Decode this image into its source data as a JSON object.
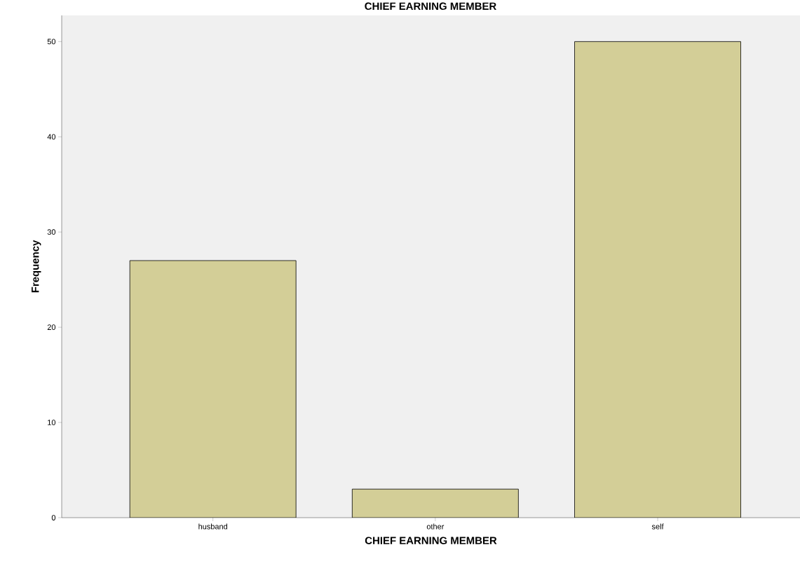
{
  "chart_data": {
    "type": "bar",
    "title": "CHIEF EARNING MEMBER",
    "xlabel": "CHIEF EARNING MEMBER",
    "ylabel": "Frequency",
    "categories": [
      "husband",
      "other",
      "self"
    ],
    "values": [
      27,
      3,
      50
    ],
    "color": "#d3ce97",
    "ylim": [
      0,
      52.75
    ],
    "yticks": [
      0,
      10,
      20,
      30,
      40,
      50
    ],
    "grid": false
  }
}
